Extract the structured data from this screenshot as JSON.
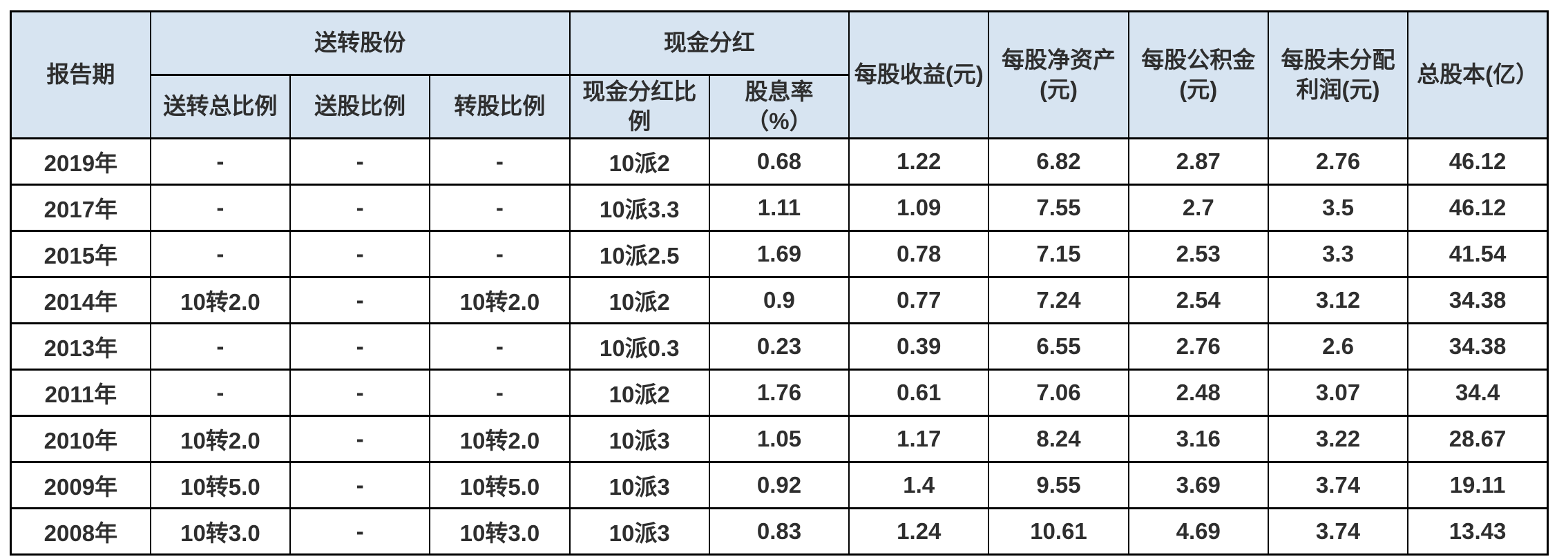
{
  "colors": {
    "header_bg": "#d7e4f1",
    "body_bg": "#ffffff",
    "border": "#000000",
    "text": "#2e2e2e"
  },
  "header": {
    "report_period": "报告期",
    "group_bonus_shares": "送转股份",
    "group_cash_dividend": "现金分红",
    "total_bonus_ratio": "送转总比例",
    "bonus_share_ratio": "送股比例",
    "transfer_share_ratio": "转股比例",
    "cash_dividend_ratio": "现金分红比\n例",
    "dividend_yield": "股息率\n（%）",
    "eps": "每股收益(元)",
    "net_asset_per_share": "每股净资产\n(元)",
    "reserve_per_share": "每股公积金\n(元)",
    "undistributed_profit_per_share": "每股未分配\n利润(元)",
    "total_shares": "总股本(亿）"
  },
  "chart_data": {
    "type": "table",
    "column_groups": [
      {
        "label": "送转股份",
        "columns": [
          "送转总比例",
          "送股比例",
          "转股比例"
        ]
      },
      {
        "label": "现金分红",
        "columns": [
          "现金分红比例",
          "股息率（%）"
        ]
      }
    ],
    "columns": [
      "报告期",
      "送转总比例",
      "送股比例",
      "转股比例",
      "现金分红比例",
      "股息率（%）",
      "每股收益(元)",
      "每股净资产(元)",
      "每股公积金(元)",
      "每股未分配利润(元)",
      "总股本(亿）"
    ],
    "rows": [
      [
        "2019年",
        "-",
        "-",
        "-",
        "10派2",
        "0.68",
        "1.22",
        "6.82",
        "2.87",
        "2.76",
        "46.12"
      ],
      [
        "2017年",
        "-",
        "-",
        "-",
        "10派3.3",
        "1.11",
        "1.09",
        "7.55",
        "2.7",
        "3.5",
        "46.12"
      ],
      [
        "2015年",
        "-",
        "-",
        "-",
        "10派2.5",
        "1.69",
        "0.78",
        "7.15",
        "2.53",
        "3.3",
        "41.54"
      ],
      [
        "2014年",
        "10转2.0",
        "-",
        "10转2.0",
        "10派2",
        "0.9",
        "0.77",
        "7.24",
        "2.54",
        "3.12",
        "34.38"
      ],
      [
        "2013年",
        "-",
        "-",
        "-",
        "10派0.3",
        "0.23",
        "0.39",
        "6.55",
        "2.76",
        "2.6",
        "34.38"
      ],
      [
        "2011年",
        "-",
        "-",
        "-",
        "10派2",
        "1.76",
        "0.61",
        "7.06",
        "2.48",
        "3.07",
        "34.4"
      ],
      [
        "2010年",
        "10转2.0",
        "-",
        "10转2.0",
        "10派3",
        "1.05",
        "1.17",
        "8.24",
        "3.16",
        "3.22",
        "28.67"
      ],
      [
        "2009年",
        "10转5.0",
        "-",
        "10转5.0",
        "10派3",
        "0.92",
        "1.4",
        "9.55",
        "3.69",
        "3.74",
        "19.11"
      ],
      [
        "2008年",
        "10转3.0",
        "-",
        "10转3.0",
        "10派3",
        "0.83",
        "1.24",
        "10.61",
        "4.69",
        "3.74",
        "13.43"
      ]
    ]
  }
}
